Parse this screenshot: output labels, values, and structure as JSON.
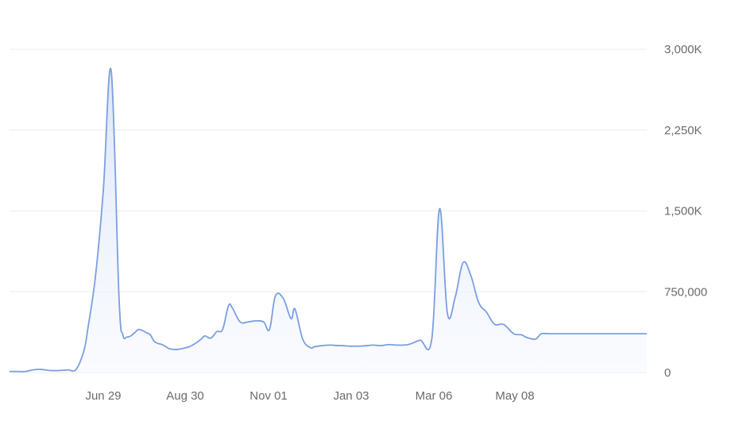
{
  "chart_data": {
    "type": "area",
    "title": "",
    "xlabel": "",
    "ylabel": "",
    "x_tick_labels": [
      "Jun 29",
      "Aug 30",
      "Nov 01",
      "Jan 03",
      "Mar 06",
      "May 08"
    ],
    "y_tick_labels": [
      "0",
      "750,000",
      "1,500K",
      "2,250K",
      "3,000K"
    ],
    "y_ticks": [
      0,
      750000,
      1500000,
      2250000,
      3000000
    ],
    "ylim": [
      0,
      3000000
    ],
    "grid": true,
    "legend": "none",
    "y_axis_position": "right",
    "line_color": "#7b9fe0",
    "fill_color": "#e6edfa",
    "x_days_from_start": [
      0,
      4,
      8,
      12,
      16,
      20,
      24,
      28,
      30,
      34,
      38,
      40,
      44,
      48,
      52,
      56,
      58,
      60,
      62,
      64,
      66,
      68,
      70,
      72,
      74,
      76,
      78,
      80,
      82,
      86,
      90,
      92,
      95,
      98,
      100,
      103,
      106,
      109,
      112,
      114,
      118,
      122,
      126,
      130,
      133,
      136,
      140,
      144,
      146,
      150,
      154,
      156,
      160,
      164,
      168,
      170,
      174,
      176,
      178,
      180,
      183,
      186,
      190,
      194,
      198,
      204,
      210,
      216,
      220,
      224,
      228,
      232,
      236,
      240,
      244,
      248,
      252,
      254,
      258,
      262,
      264,
      268,
      270,
      272,
      276,
      280,
      284,
      288,
      292,
      296,
      300,
      304,
      308,
      312,
      316,
      320,
      324,
      326
    ],
    "values": [
      10000,
      10000,
      10000,
      25000,
      30000,
      20000,
      18000,
      22000,
      25000,
      28000,
      200000,
      400000,
      900000,
      1700000,
      2800000,
      700000,
      350000,
      330000,
      340000,
      370000,
      400000,
      390000,
      370000,
      350000,
      290000,
      270000,
      260000,
      240000,
      220000,
      215000,
      230000,
      240000,
      270000,
      310000,
      340000,
      320000,
      380000,
      400000,
      620000,
      600000,
      470000,
      470000,
      480000,
      470000,
      400000,
      710000,
      690000,
      500000,
      590000,
      310000,
      230000,
      240000,
      250000,
      255000,
      250000,
      250000,
      245000,
      245000,
      245000,
      246000,
      250000,
      255000,
      250000,
      260000,
      255000,
      260000,
      300000,
      310000,
      1520000,
      550000,
      700000,
      1020000,
      900000,
      650000,
      560000,
      450000,
      450000,
      430000,
      360000,
      350000,
      330000,
      310000,
      320000,
      360000,
      360000,
      360000,
      360000,
      360000,
      360000,
      360000,
      360000,
      360000,
      360000,
      360000,
      360000,
      360000,
      360000,
      360000
    ]
  }
}
